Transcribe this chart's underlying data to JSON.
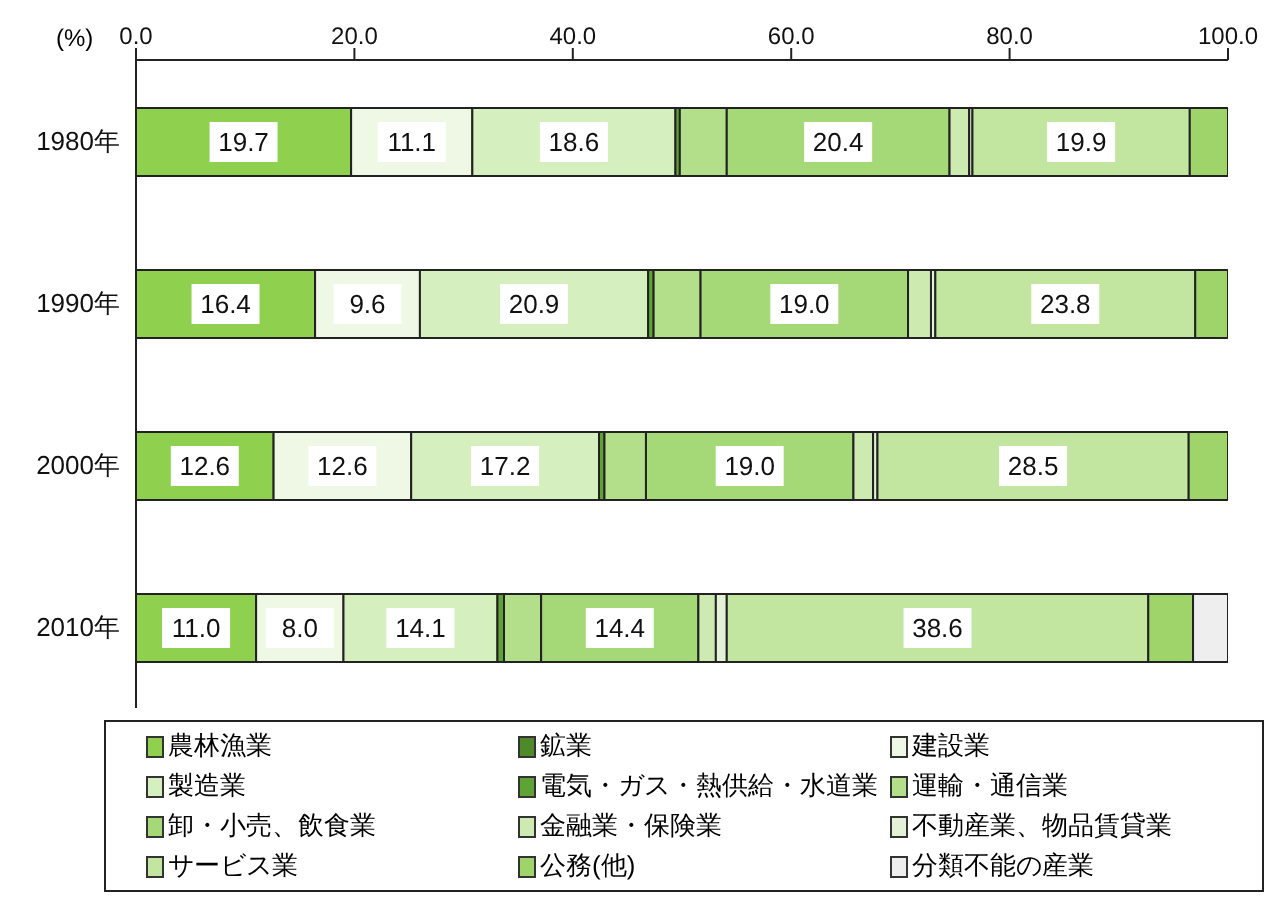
{
  "chart_data": {
    "type": "bar",
    "orientation": "horizontal",
    "stacked": true,
    "xlabel": "(%)",
    "categories": [
      "1980年",
      "1990年",
      "2000年",
      "2010年"
    ],
    "xlim": [
      0,
      100
    ],
    "xticks": [
      {
        "value": 0,
        "label": "0.0"
      },
      {
        "value": 20,
        "label": "20.0"
      },
      {
        "value": 40,
        "label": "40.0"
      },
      {
        "value": 60,
        "label": "60.0"
      },
      {
        "value": 80,
        "label": "80.0"
      },
      {
        "value": 100,
        "label": "100.0"
      }
    ],
    "legend": "bottom",
    "grid": false,
    "series": [
      {
        "name": "農林漁業",
        "color": "#8fd14f",
        "values": [
          19.7,
          16.4,
          12.6,
          11.0
        ],
        "value_labels": [
          "19.7",
          "16.4",
          "12.6",
          "11.0"
        ]
      },
      {
        "name": "鉱業",
        "color": "#4e8a2a",
        "values": [
          null,
          null,
          null,
          null
        ],
        "value_labels": [
          null,
          null,
          null,
          null
        ]
      },
      {
        "name": "建設業",
        "color": "#eef8e4",
        "values": [
          11.1,
          9.6,
          12.6,
          8.0
        ],
        "value_labels": [
          "11.1",
          "9.6",
          "12.6",
          "8.0"
        ]
      },
      {
        "name": "製造業",
        "color": "#d6efbf",
        "values": [
          18.6,
          20.9,
          17.2,
          14.1
        ],
        "value_labels": [
          "18.6",
          "20.9",
          "17.2",
          "14.1"
        ]
      },
      {
        "name": "電気・ガス・熱供給・水道業",
        "color": "#5fa336",
        "values": [
          0.4,
          0.5,
          0.5,
          0.6
        ],
        "value_labels": [
          null,
          null,
          null,
          null
        ]
      },
      {
        "name": "運輸・通信業",
        "color": "#b4df8a",
        "values": [
          4.3,
          4.3,
          3.8,
          3.4
        ],
        "value_labels": [
          null,
          null,
          null,
          null
        ]
      },
      {
        "name": "卸・小売、飲食業",
        "color": "#a5d977",
        "values": [
          20.4,
          19.0,
          19.0,
          14.4
        ],
        "value_labels": [
          "20.4",
          "19.0",
          "19.0",
          "14.4"
        ]
      },
      {
        "name": "金融業・保険業",
        "color": "#cdeab0",
        "values": [
          1.8,
          2.1,
          1.8,
          1.6
        ],
        "value_labels": [
          null,
          null,
          null,
          null
        ]
      },
      {
        "name": "不動産業、物品賃貸業",
        "color": "#e3f2d6",
        "values": [
          0.3,
          0.4,
          0.4,
          1.0
        ],
        "value_labels": [
          null,
          null,
          null,
          null
        ]
      },
      {
        "name": "サービス業",
        "color": "#c2e69f",
        "values": [
          19.9,
          23.8,
          28.5,
          38.6
        ],
        "value_labels": [
          "19.9",
          "23.8",
          "28.5",
          "38.6"
        ]
      },
      {
        "name": "公務(他)",
        "color": "#9ed46a",
        "values": [
          3.5,
          3.0,
          3.6,
          4.1
        ],
        "value_labels": [
          null,
          null,
          null,
          null
        ]
      },
      {
        "name": "分類不能の産業",
        "color": "#eeeeee",
        "values": [
          null,
          null,
          null,
          3.2
        ],
        "value_labels": [
          null,
          null,
          null,
          null
        ]
      }
    ]
  }
}
